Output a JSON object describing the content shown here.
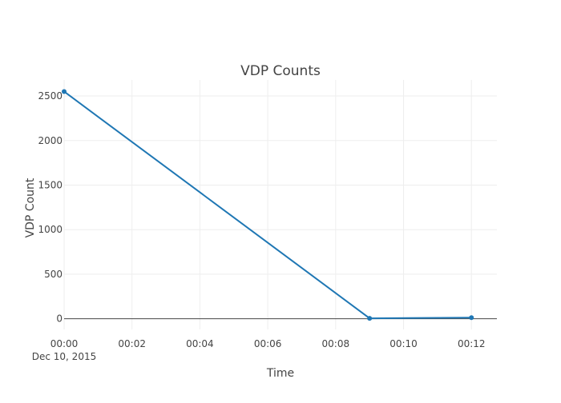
{
  "chart_data": {
    "type": "line",
    "title": "VDP Counts",
    "xlabel": "Time",
    "ylabel": "VDP Count",
    "x_tick_labels": [
      "00:00",
      "00:02",
      "00:04",
      "00:06",
      "00:08",
      "00:10",
      "00:12"
    ],
    "x_date_label": "Dec 10, 2015",
    "y_tick_labels": [
      "0",
      "500",
      "1000",
      "1500",
      "2000",
      "2500"
    ],
    "x_range": [
      "2015-12-10 00:00:00",
      "2015-12-10 00:12:45"
    ],
    "y_range": [
      -120,
      2680
    ],
    "grid": true,
    "series": [
      {
        "color": "#1f77b4",
        "mode": "lines+markers",
        "x": [
          "2015-12-10 00:00:00",
          "2015-12-10 00:09:00",
          "2015-12-10 00:12:00"
        ],
        "y": [
          2550,
          5,
          12
        ]
      }
    ]
  }
}
